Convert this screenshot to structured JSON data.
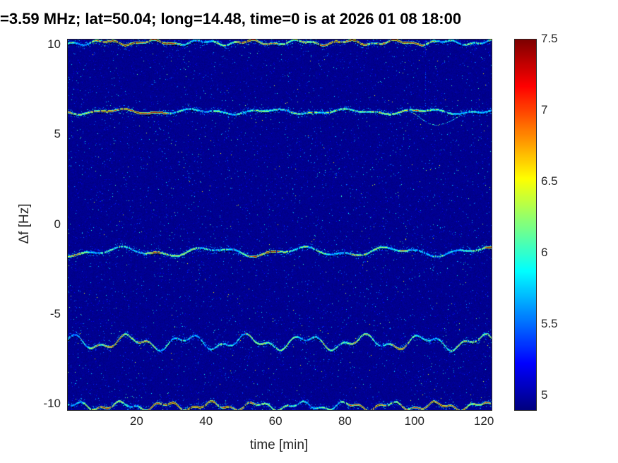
{
  "chart_data": {
    "type": "heatmap",
    "title": "=3.59 MHz;  lat=50.04; long=14.48, time=0 is at 2026 01 08 18:00",
    "xlabel": "time [min]",
    "ylabel": "Δf [Hz]",
    "xlim": [
      0,
      122
    ],
    "ylim": [
      -10.3,
      10.3
    ],
    "xticks": [
      20,
      40,
      60,
      80,
      100,
      120
    ],
    "yticks": [
      10,
      5,
      0,
      -5,
      -10
    ],
    "grid": false,
    "colormap": "jet",
    "background_value": 4.9,
    "colorbar": {
      "min": 4.9,
      "max": 7.5,
      "ticks": [
        5,
        5.5,
        6,
        6.5,
        7,
        7.5
      ],
      "position": "right"
    },
    "traces": [
      {
        "df": 10.15,
        "amp": 0.1,
        "period": 14
      },
      {
        "df": 6.3,
        "amp": 0.1,
        "period": 22,
        "dip": {
          "t": 106,
          "depth": 0.85,
          "width": 5
        }
      },
      {
        "df": -1.5,
        "amp": 0.18,
        "period": 26
      },
      {
        "df": -6.55,
        "amp": 0.3,
        "period": 17
      },
      {
        "df": -10.1,
        "amp": 0.17,
        "period": 13
      }
    ],
    "vertical_streak_t": 103,
    "seed": 1337
  }
}
